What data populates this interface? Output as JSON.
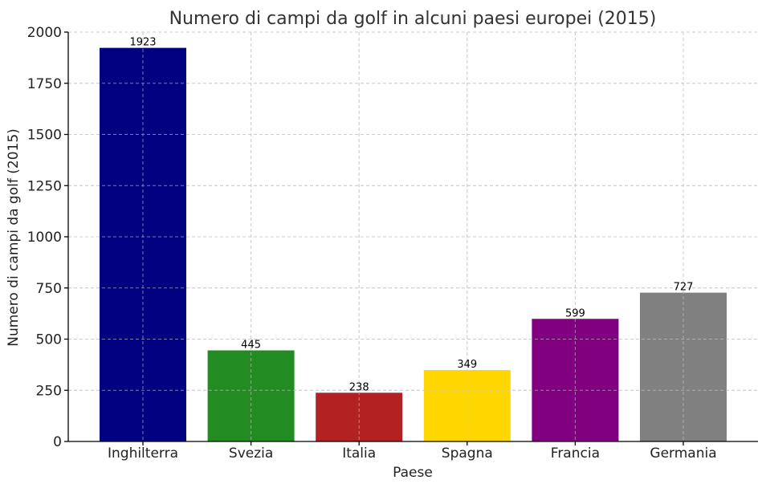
{
  "chart_data": {
    "type": "bar",
    "title": "Numero di campi da golf in alcuni paesi europei (2015)",
    "xlabel": "Paese",
    "ylabel": "Numero di campi da golf (2015)",
    "categories": [
      "Inghilterra",
      "Svezia",
      "Italia",
      "Spagna",
      "Francia",
      "Germania"
    ],
    "values": [
      1923,
      445,
      238,
      349,
      599,
      727
    ],
    "data_labels": [
      "1923",
      "445",
      "238",
      "349",
      "599",
      "727"
    ],
    "colors": [
      "#000080",
      "#228B22",
      "#B22222",
      "#FFD700",
      "#800080",
      "#808080"
    ],
    "ylim": [
      0,
      2000
    ],
    "yticks": [
      0,
      250,
      500,
      750,
      1000,
      1250,
      1500,
      1750,
      2000
    ],
    "grid": true,
    "legend": "none"
  }
}
